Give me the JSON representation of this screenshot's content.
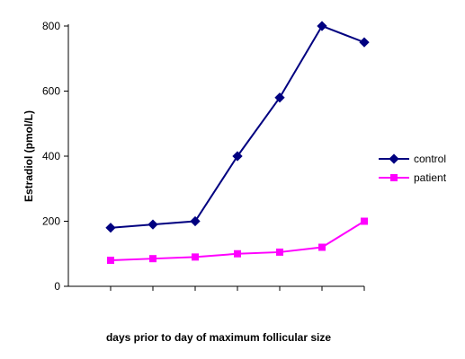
{
  "chart_data": {
    "type": "line",
    "title": "",
    "xlabel": "days prior to day of maximum follicular size",
    "ylabel": "Estradiol (pmol/L)",
    "ylim": [
      0,
      800
    ],
    "yticks": [
      0,
      200,
      400,
      600,
      800
    ],
    "x_points": 7,
    "grid": false,
    "legend_position": "right",
    "series": [
      {
        "name": "control",
        "color": "#000080",
        "marker": "diamond",
        "values": [
          180,
          190,
          200,
          400,
          580,
          800,
          750
        ]
      },
      {
        "name": "patient",
        "color": "#ff00ff",
        "marker": "square",
        "values": [
          80,
          85,
          90,
          100,
          105,
          120,
          200
        ]
      }
    ]
  }
}
